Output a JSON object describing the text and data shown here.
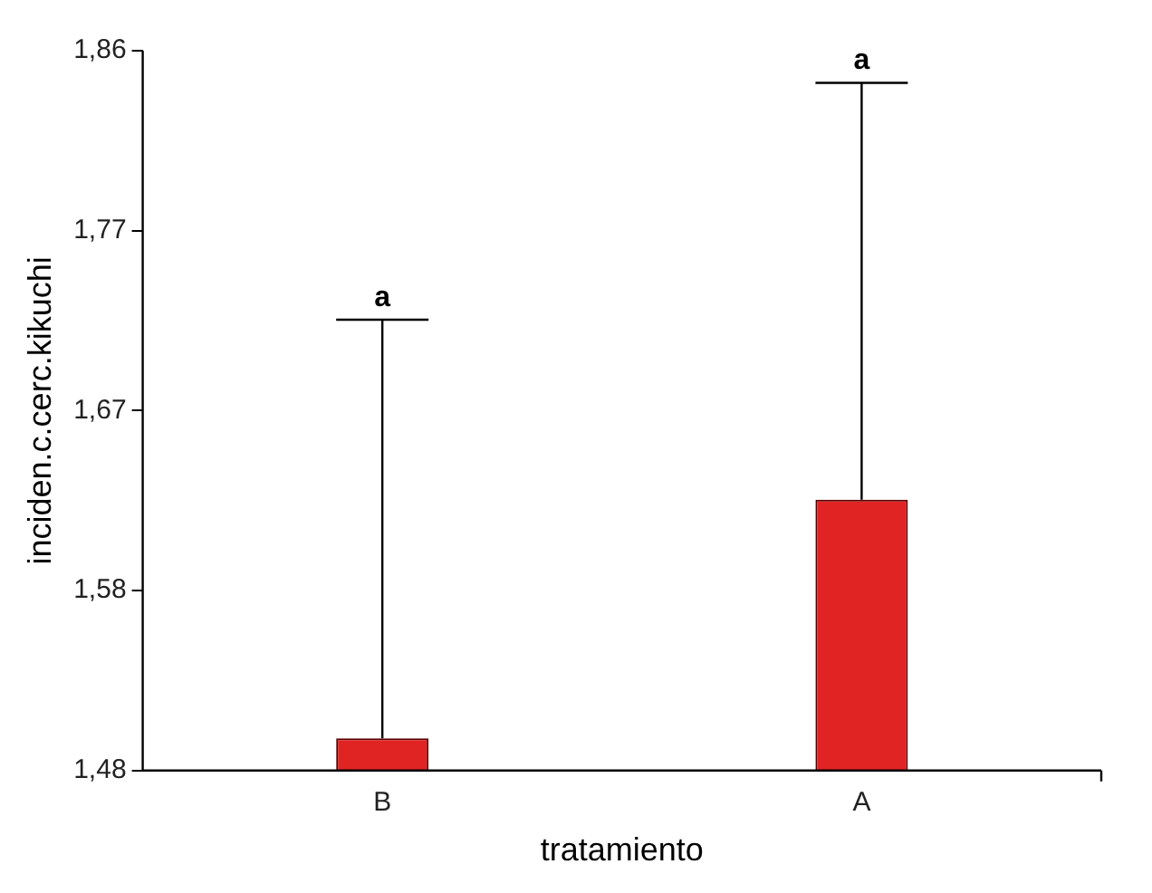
{
  "chart_data": {
    "type": "bar",
    "xlabel": "tratamiento",
    "ylabel": "inciden.c.cerc.kikuchi",
    "categories": [
      "B",
      "A"
    ],
    "values": [
      1.497,
      1.623
    ],
    "errors": [
      [
        1.497,
        1.718
      ],
      [
        1.623,
        1.843
      ]
    ],
    "color": "#e02424",
    "ylim": [
      1.48,
      1.86
    ],
    "yticks": [
      {
        "value": 1.48,
        "label": "1,48"
      },
      {
        "value": 1.575,
        "label": "1,58"
      },
      {
        "value": 1.67,
        "label": "1,67"
      },
      {
        "value": 1.765,
        "label": "1,77"
      },
      {
        "value": 1.86,
        "label": "1,86"
      }
    ],
    "grid": false,
    "legend": false,
    "annotations": [
      {
        "text": "a",
        "x": "B",
        "y": 1.718
      },
      {
        "text": "a",
        "x": "A",
        "y": 1.843
      }
    ]
  }
}
